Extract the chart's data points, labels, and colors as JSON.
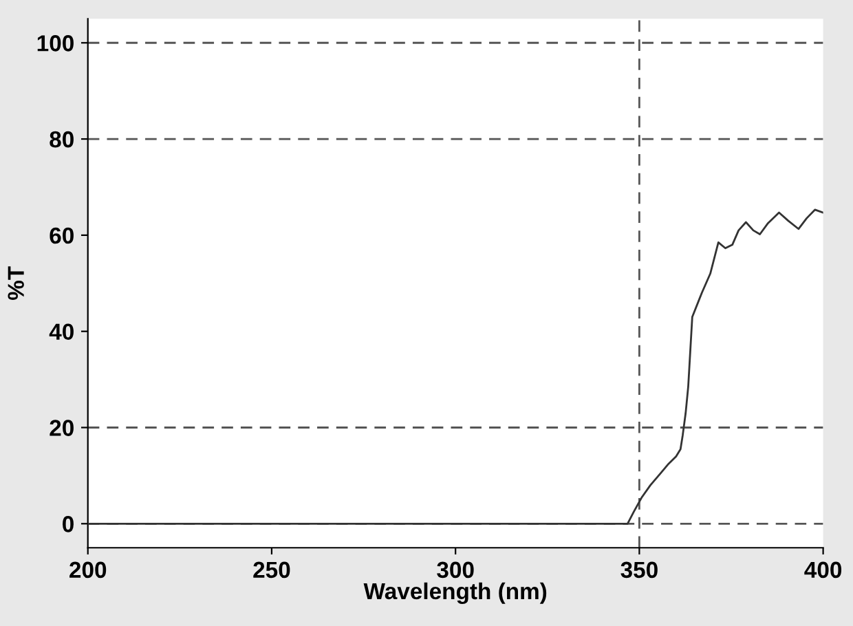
{
  "chart_data": {
    "type": "line",
    "xlabel": "Wavelength (nm)",
    "ylabel": "%T",
    "series": [
      {
        "color": "#333333",
        "x": [
          200,
          346.8,
          348.5,
          350.6,
          353,
          355.8,
          358,
          360,
          361.2,
          361.8,
          362.6,
          363.3,
          364.4,
          367,
          369.3,
          371.5,
          373.4,
          375.3,
          377,
          379,
          381,
          382.8,
          385,
          388,
          390.5,
          393.3,
          395.5,
          397.8,
          400
        ],
        "values": [
          0,
          0,
          2.5,
          5.4,
          8,
          10.5,
          12.5,
          14,
          15.5,
          18.4,
          23,
          28.5,
          43,
          48,
          52,
          58.5,
          57.3,
          58,
          61,
          62.7,
          61,
          60.2,
          62.5,
          64.7,
          63,
          61.3,
          63.5,
          65.3,
          64.7
        ]
      }
    ],
    "xlim": [
      200,
      400
    ],
    "ylim": [
      -5,
      105
    ],
    "xticks": [
      200,
      250,
      300,
      350,
      400
    ],
    "yticks": [
      0,
      20,
      40,
      60,
      80,
      100
    ],
    "grid": false,
    "marker": "none",
    "line_style": "solid",
    "legend": false,
    "ref_lines": [
      {
        "axis": "y",
        "value": 0,
        "line_style": "dashed",
        "color": "#555555"
      },
      {
        "axis": "y",
        "value": 20,
        "line_style": "dashed",
        "color": "#555555"
      },
      {
        "axis": "y",
        "value": 80,
        "line_style": "dashed",
        "color": "#555555"
      },
      {
        "axis": "y",
        "value": 100,
        "line_style": "dashed",
        "color": "#555555"
      },
      {
        "axis": "x",
        "value": 350,
        "line_style": "dashed",
        "color": "#555555"
      }
    ]
  }
}
